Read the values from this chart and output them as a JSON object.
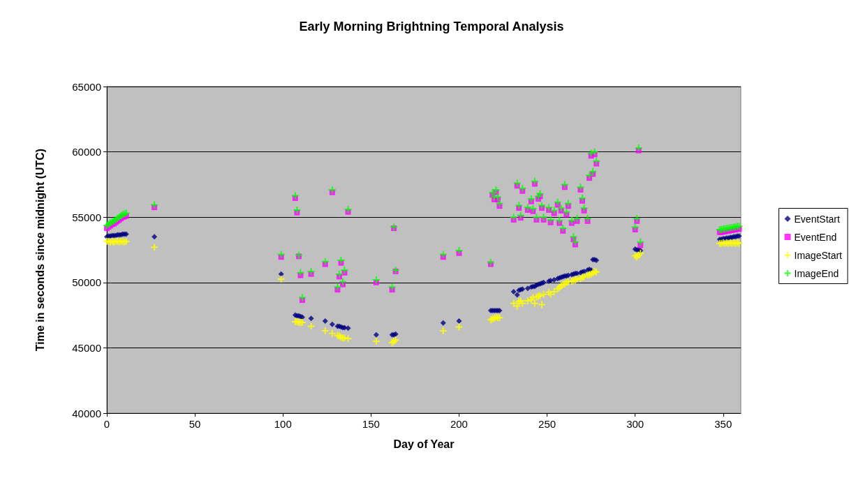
{
  "chart_data": {
    "type": "scatter",
    "title": "Early Morning Brightning Temporal Analysis",
    "xlabel": "Day of Year",
    "ylabel": "Time in seconds since midnight (UTC)",
    "x": [
      0,
      1,
      2,
      3,
      4,
      5,
      6,
      7,
      8,
      9,
      10,
      11,
      27,
      99,
      107,
      108,
      109,
      110,
      111,
      116,
      124,
      128,
      131,
      132,
      133,
      134,
      135,
      137,
      153,
      162,
      163,
      164,
      191,
      200,
      218,
      219,
      220,
      221,
      222,
      223,
      231,
      233,
      234,
      235,
      236,
      239,
      241,
      242,
      243,
      244,
      245,
      246,
      247,
      248,
      251,
      252,
      254,
      256,
      257,
      258,
      259,
      260,
      261,
      262,
      264,
      265,
      266,
      267,
      269,
      270,
      271,
      273,
      274,
      275,
      276,
      277,
      278,
      300,
      301,
      302,
      303,
      348,
      349,
      350,
      351,
      352,
      353,
      354,
      355,
      356,
      357,
      358,
      359
    ],
    "series": [
      {
        "name": "EventStart",
        "color": "#000080",
        "marker": "diamond",
        "values": [
          53500,
          53550,
          53550,
          53600,
          53600,
          53600,
          53650,
          53650,
          53650,
          53700,
          53700,
          53700,
          53500,
          50650,
          47500,
          47450,
          47450,
          47400,
          47350,
          47250,
          47050,
          46800,
          46650,
          46650,
          46600,
          46550,
          46550,
          46500,
          46000,
          46000,
          46000,
          46050,
          46900,
          47050,
          47850,
          47850,
          47850,
          47850,
          47850,
          47850,
          49300,
          49050,
          49400,
          49450,
          49500,
          49550,
          49650,
          49700,
          49700,
          49800,
          49850,
          49900,
          49950,
          50000,
          50100,
          50150,
          50200,
          50300,
          50350,
          50400,
          50450,
          50500,
          50500,
          50550,
          50600,
          50650,
          50700,
          50700,
          50750,
          50800,
          50850,
          50950,
          51000,
          50950,
          51750,
          51750,
          51700,
          52550,
          52500,
          52500,
          52450,
          53300,
          53300,
          53350,
          53350,
          53400,
          53400,
          53450,
          53450,
          53500,
          53500,
          53550,
          53550
        ]
      },
      {
        "name": "EventEnd",
        "color": "#ff00ff",
        "marker": "square",
        "values": [
          54150,
          54250,
          54350,
          54450,
          54500,
          54600,
          54700,
          54800,
          54900,
          55000,
          55050,
          55100,
          55750,
          51950,
          56450,
          55350,
          52000,
          50550,
          48650,
          50650,
          51400,
          56900,
          49450,
          50450,
          51500,
          49850,
          50750,
          55400,
          50000,
          49450,
          54150,
          50850,
          51950,
          52250,
          51400,
          56700,
          56350,
          56900,
          56350,
          55850,
          54800,
          57400,
          55700,
          54950,
          57000,
          55550,
          56200,
          55450,
          57550,
          54800,
          56400,
          56600,
          55700,
          54800,
          55550,
          54600,
          55300,
          55950,
          54550,
          55500,
          53950,
          57300,
          55200,
          55850,
          54550,
          53300,
          52900,
          54700,
          57100,
          56250,
          55500,
          54700,
          58000,
          59700,
          58300,
          59800,
          59100,
          54050,
          54700,
          60100,
          52850,
          53850,
          53850,
          53900,
          53900,
          53950,
          53950,
          54000,
          54000,
          54050,
          54050,
          54100,
          54100
        ]
      },
      {
        "name": "ImageStart",
        "color": "#ffff00",
        "marker": "cross",
        "values": [
          53150,
          53150,
          53100,
          53150,
          53100,
          53150,
          53150,
          53100,
          53150,
          53150,
          53100,
          53150,
          52700,
          50250,
          47000,
          47000,
          46950,
          46950,
          46950,
          46650,
          46300,
          46100,
          45950,
          45900,
          45800,
          45750,
          45750,
          45700,
          45500,
          45400,
          45500,
          45600,
          46300,
          46600,
          47150,
          47200,
          47250,
          47350,
          47300,
          47300,
          48400,
          48200,
          48550,
          48600,
          48400,
          48600,
          48700,
          48850,
          48400,
          48900,
          48950,
          49000,
          48300,
          49100,
          49250,
          49100,
          49300,
          49500,
          49600,
          49750,
          49850,
          49900,
          50000,
          50050,
          50100,
          50150,
          50200,
          50250,
          50300,
          50400,
          50450,
          50550,
          50600,
          50650,
          50750,
          50850,
          50800,
          52050,
          51950,
          52100,
          52250,
          53000,
          53000,
          53050,
          53000,
          53050,
          53000,
          53050,
          53000,
          53050,
          53000,
          53050,
          53000
        ]
      },
      {
        "name": "ImageEnd",
        "color": "#00ff00",
        "marker": "cross",
        "values": [
          54350,
          54450,
          54550,
          54650,
          54700,
          54800,
          54900,
          55000,
          55100,
          55200,
          55250,
          55300,
          55950,
          52150,
          56650,
          55550,
          52100,
          50750,
          48850,
          50850,
          51600,
          57100,
          49650,
          50650,
          51700,
          50050,
          50950,
          55600,
          50200,
          49650,
          54250,
          50950,
          52150,
          52450,
          51550,
          56900,
          56550,
          57100,
          56550,
          56050,
          55000,
          57600,
          55900,
          55150,
          57200,
          55750,
          56400,
          55650,
          57750,
          55000,
          56600,
          56800,
          55900,
          55000,
          55750,
          54800,
          55500,
          56150,
          54750,
          55700,
          54150,
          57500,
          55400,
          56050,
          54750,
          53500,
          53100,
          54900,
          57300,
          56450,
          55700,
          54900,
          58200,
          59900,
          58500,
          60000,
          59300,
          54250,
          54900,
          60300,
          53100,
          54050,
          54050,
          54100,
          54100,
          54150,
          54150,
          54200,
          54200,
          54250,
          54250,
          54300,
          54300
        ]
      }
    ],
    "xlim": [
      0,
      360
    ],
    "xticks": [
      0,
      50,
      100,
      150,
      200,
      250,
      300,
      350
    ],
    "ylim": [
      40000,
      65000
    ],
    "yticks": [
      40000,
      45000,
      50000,
      55000,
      60000,
      65000
    ],
    "grid": "y",
    "legend": "right"
  }
}
